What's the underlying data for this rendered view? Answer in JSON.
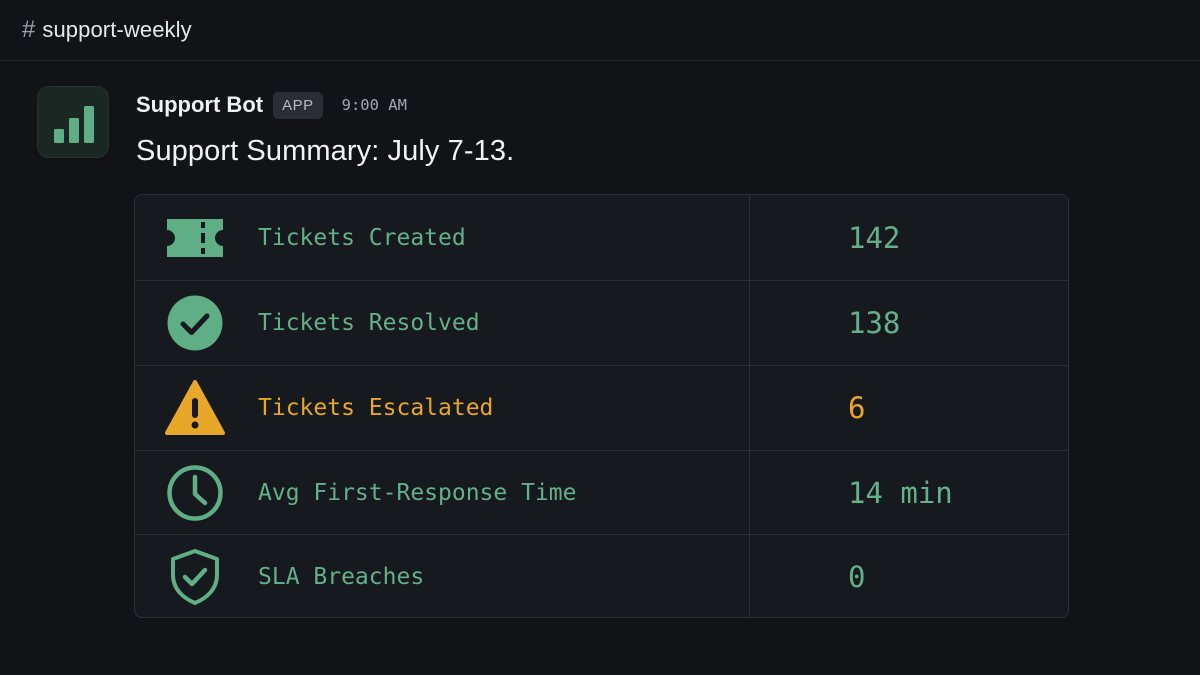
{
  "channel": {
    "hash": "#",
    "name": "support-weekly"
  },
  "message": {
    "sender": "Support Bot",
    "badge": "APP",
    "time": "9:00 AM",
    "title": "Support Summary: July 7-13.",
    "avatar_icon": "bar-chart-icon"
  },
  "colors": {
    "accent_green": "#63b08a",
    "warning_amber": "#e9a72a",
    "background": "#111317"
  },
  "stats": [
    {
      "icon": "ticket-icon",
      "label": "Tickets Created",
      "value": "142",
      "status": "normal"
    },
    {
      "icon": "check-circle-icon",
      "label": "Tickets Resolved",
      "value": "138",
      "status": "normal"
    },
    {
      "icon": "warning-triangle-icon",
      "label": "Tickets Escalated",
      "value": "6",
      "status": "warning"
    },
    {
      "icon": "clock-icon",
      "label": "Avg First-Response Time",
      "value": "14 min",
      "status": "normal"
    },
    {
      "icon": "shield-check-icon",
      "label": "SLA Breaches",
      "value": "0",
      "status": "normal"
    }
  ]
}
